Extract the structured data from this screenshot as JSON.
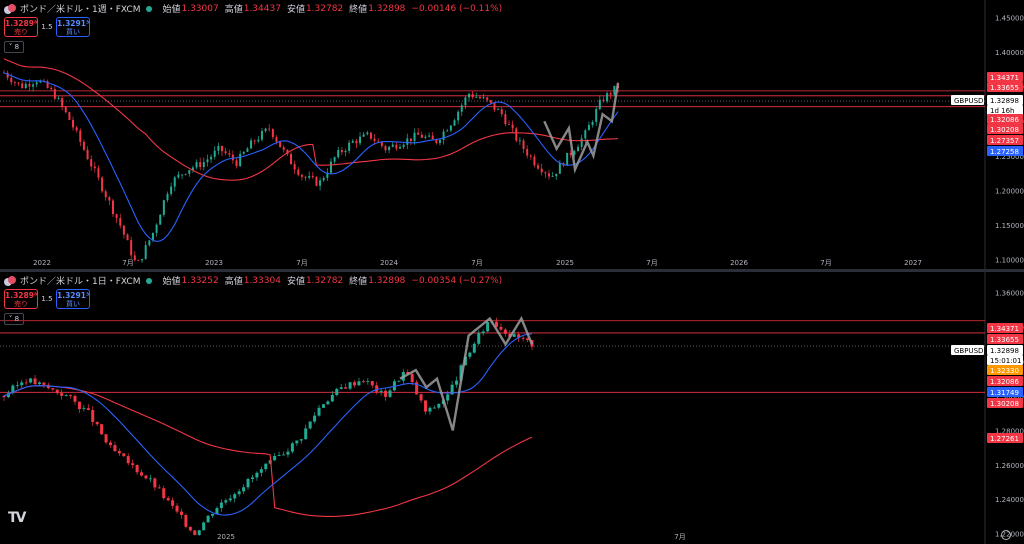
{
  "top": {
    "symbol": "ポンド／米ドル・1週・FXCM",
    "ohlc": [
      {
        "label": "始値",
        "value": "1.33007"
      },
      {
        "label": "高値",
        "value": "1.34437"
      },
      {
        "label": "安値",
        "value": "1.32782"
      },
      {
        "label": "終値",
        "value": "1.32898"
      },
      {
        "label": "",
        "value": "−0.00146 (−0.11%)"
      }
    ],
    "sell_price": "1.3289⁸",
    "sell_label": "売り",
    "spread": "1.5",
    "buy_price": "1.3291³",
    "buy_label": "買い",
    "collapse": "8",
    "x_labels": [
      "2022",
      "7月",
      "2023",
      "7月",
      "2024",
      "7月",
      "2025",
      "7月",
      "2026",
      "7月",
      "2027"
    ],
    "y_labels": [
      "1.45000",
      "1.40000",
      "1.35000",
      "1.30000",
      "1.25000",
      "1.20000",
      "1.15000",
      "1.10000"
    ],
    "price_tags": [
      {
        "text": "1.34371",
        "color": "#f23645"
      },
      {
        "text": "1.33655",
        "color": "#f23645"
      },
      {
        "text": "1.32898",
        "color": "#ffffff"
      },
      {
        "text": "1d 16h",
        "color": "#ffffff"
      },
      {
        "text": "1.32086",
        "color": "#f23645"
      },
      {
        "text": "1.30208",
        "color": "#f23645"
      },
      {
        "text": "1.27357",
        "color": "#f23645"
      },
      {
        "text": "1.27258",
        "color": "#2962ff"
      }
    ],
    "ticker_tag": "GBPUSD"
  },
  "bottom": {
    "symbol": "ポンド／米ドル・1日・FXCM",
    "ohlc": [
      {
        "label": "始値",
        "value": "1.33252"
      },
      {
        "label": "高値",
        "value": "1.33304"
      },
      {
        "label": "安値",
        "value": "1.32782"
      },
      {
        "label": "終値",
        "value": "1.32898"
      },
      {
        "label": "",
        "value": "−0.00354 (−0.27%)"
      }
    ],
    "sell_price": "1.3289⁸",
    "sell_label": "売り",
    "spread": "1.5",
    "buy_price": "1.3291³",
    "buy_label": "買い",
    "collapse": "8",
    "x_labels": [
      "2025",
      "7月"
    ],
    "y_labels": [
      "1.36000",
      "1.34000",
      "1.32000",
      "1.30000",
      "1.28000",
      "1.26000",
      "1.24000",
      "1.22000"
    ],
    "price_tags": [
      {
        "text": "1.34371",
        "color": "#f23645"
      },
      {
        "text": "1.33655",
        "color": "#f23645"
      },
      {
        "text": "1.32898",
        "color": "#ffffff"
      },
      {
        "text": "15:01:01",
        "color": "#ffffff"
      },
      {
        "text": "1.32330",
        "color": "#ff9800"
      },
      {
        "text": "1.32086",
        "color": "#f23645"
      },
      {
        "text": "1.31749",
        "color": "#2962ff"
      },
      {
        "text": "1.30208",
        "color": "#f23645"
      },
      {
        "text": "1.27261",
        "color": "#f23645"
      }
    ],
    "ticker_tag": "GBPUSD"
  },
  "colors": {
    "up": "#22ab94",
    "down": "#f23645",
    "ma_fast": "#2962ff",
    "ma_slow": "#f23645",
    "hline": "#f23645",
    "overlay": "#9e9e9e"
  },
  "icons": [
    "pound-dollar-flag-icon",
    "market-open-icon",
    "tradingview-logo-icon",
    "settings-gear-icon"
  ]
}
